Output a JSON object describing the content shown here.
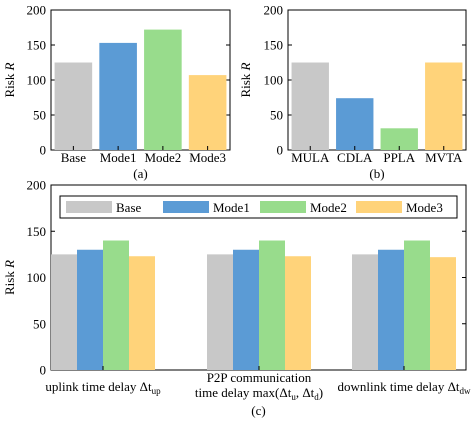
{
  "chart_data": [
    {
      "id": "a",
      "type": "bar",
      "panel_label": "(a)",
      "ylabel": "Risk R",
      "ylim": [
        0,
        200
      ],
      "yticks": [
        0,
        50,
        100,
        150,
        200
      ],
      "categories": [
        "Base",
        "Mode1",
        "Mode2",
        "Mode3"
      ],
      "values": [
        125,
        153,
        172,
        107
      ],
      "colors": [
        "#c8c8c8",
        "#5b9bd5",
        "#98dc8c",
        "#ffd37a"
      ]
    },
    {
      "id": "b",
      "type": "bar",
      "panel_label": "(b)",
      "ylabel": "Risk R",
      "ylim": [
        0,
        200
      ],
      "yticks": [
        0,
        50,
        100,
        150,
        200
      ],
      "categories": [
        "MULA",
        "CDLA",
        "PPLA",
        "MVTA"
      ],
      "values": [
        125,
        74,
        31,
        125
      ],
      "colors": [
        "#c8c8c8",
        "#5b9bd5",
        "#98dc8c",
        "#ffd37a"
      ]
    },
    {
      "id": "c",
      "type": "bar",
      "panel_label": "(c)",
      "ylabel": "Risk R",
      "ylim": [
        0,
        200
      ],
      "yticks": [
        0,
        50,
        100,
        150,
        200
      ],
      "legend_position": "top",
      "categories": [
        [
          "uplink time delay Δt",
          "up"
        ],
        [
          "P2P communication",
          "time delay max(Δt",
          "u",
          ", Δt",
          "d",
          ")"
        ],
        [
          "downlink time delay Δt",
          "dw"
        ]
      ],
      "series": [
        {
          "name": "Base",
          "color": "#c8c8c8",
          "values": [
            125,
            125,
            125
          ]
        },
        {
          "name": "Mode1",
          "color": "#5b9bd5",
          "values": [
            130,
            130,
            130
          ]
        },
        {
          "name": "Mode2",
          "color": "#98dc8c",
          "values": [
            140,
            140,
            140
          ]
        },
        {
          "name": "Mode3",
          "color": "#ffd37a",
          "values": [
            123,
            123,
            122
          ]
        }
      ]
    }
  ]
}
